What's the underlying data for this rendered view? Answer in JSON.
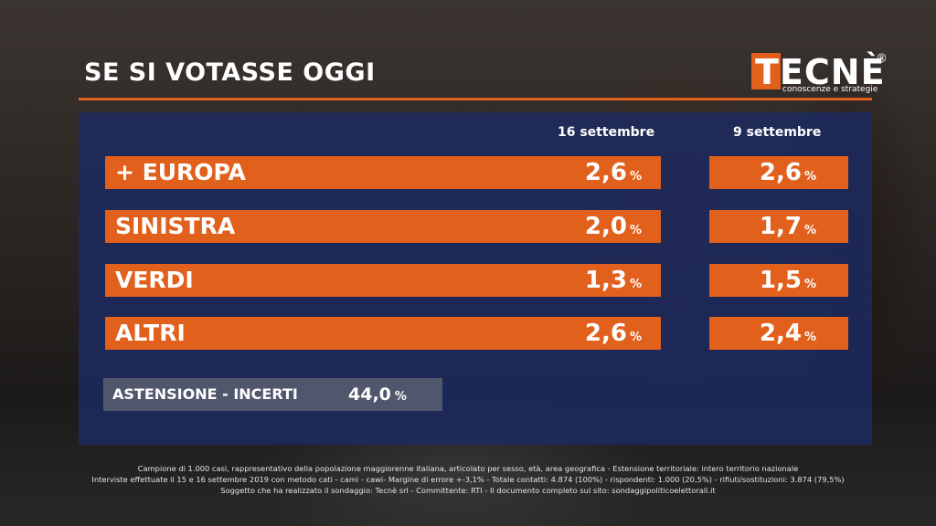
{
  "title": "SE SI VOTASSE OGGI",
  "logo": {
    "text": "TECNÈ",
    "registered": "®",
    "subtitle": "conoscenze e strategie"
  },
  "colors": {
    "accent": "#e0601c",
    "panel": "#1c2a60"
  },
  "columns": {
    "current": "16 settembre",
    "previous": "9 settembre"
  },
  "rows": [
    {
      "label": "+ EUROPA",
      "current": "2,6",
      "previous": "2,6",
      "unit": "%"
    },
    {
      "label": "SINISTRA",
      "current": "2,0",
      "previous": "1,7",
      "unit": "%"
    },
    {
      "label": "VERDI",
      "current": "1,3",
      "previous": "1,5",
      "unit": "%"
    },
    {
      "label": "ALTRI",
      "current": "2,6",
      "previous": "2,4",
      "unit": "%"
    }
  ],
  "abstention": {
    "label": "ASTENSIONE - INCERTI",
    "value": "44,0",
    "unit": "%"
  },
  "footer": [
    "Campione di 1.000 casi, rappresentativo della popolazione maggiorenne italiana, articolato per sesso, età, area geografica - Estensione territoriale: intero territorio nazionale",
    "Interviste effettuate il 15 e 16 settembre 2019 con metodo cati - cami - cawi- Margine di errore +-3,1% - Totale contatti: 4.874 (100%) - rispondenti: 1.000 (20,5%) - rifiuti/sostituzioni: 3.874 (79,5%)",
    "Soggetto che ha realizzato il sondaggio: Tecnè srl - Committente: RTI - Il documento completo sul sito: sondaggipoliticoelettorali.it"
  ]
}
